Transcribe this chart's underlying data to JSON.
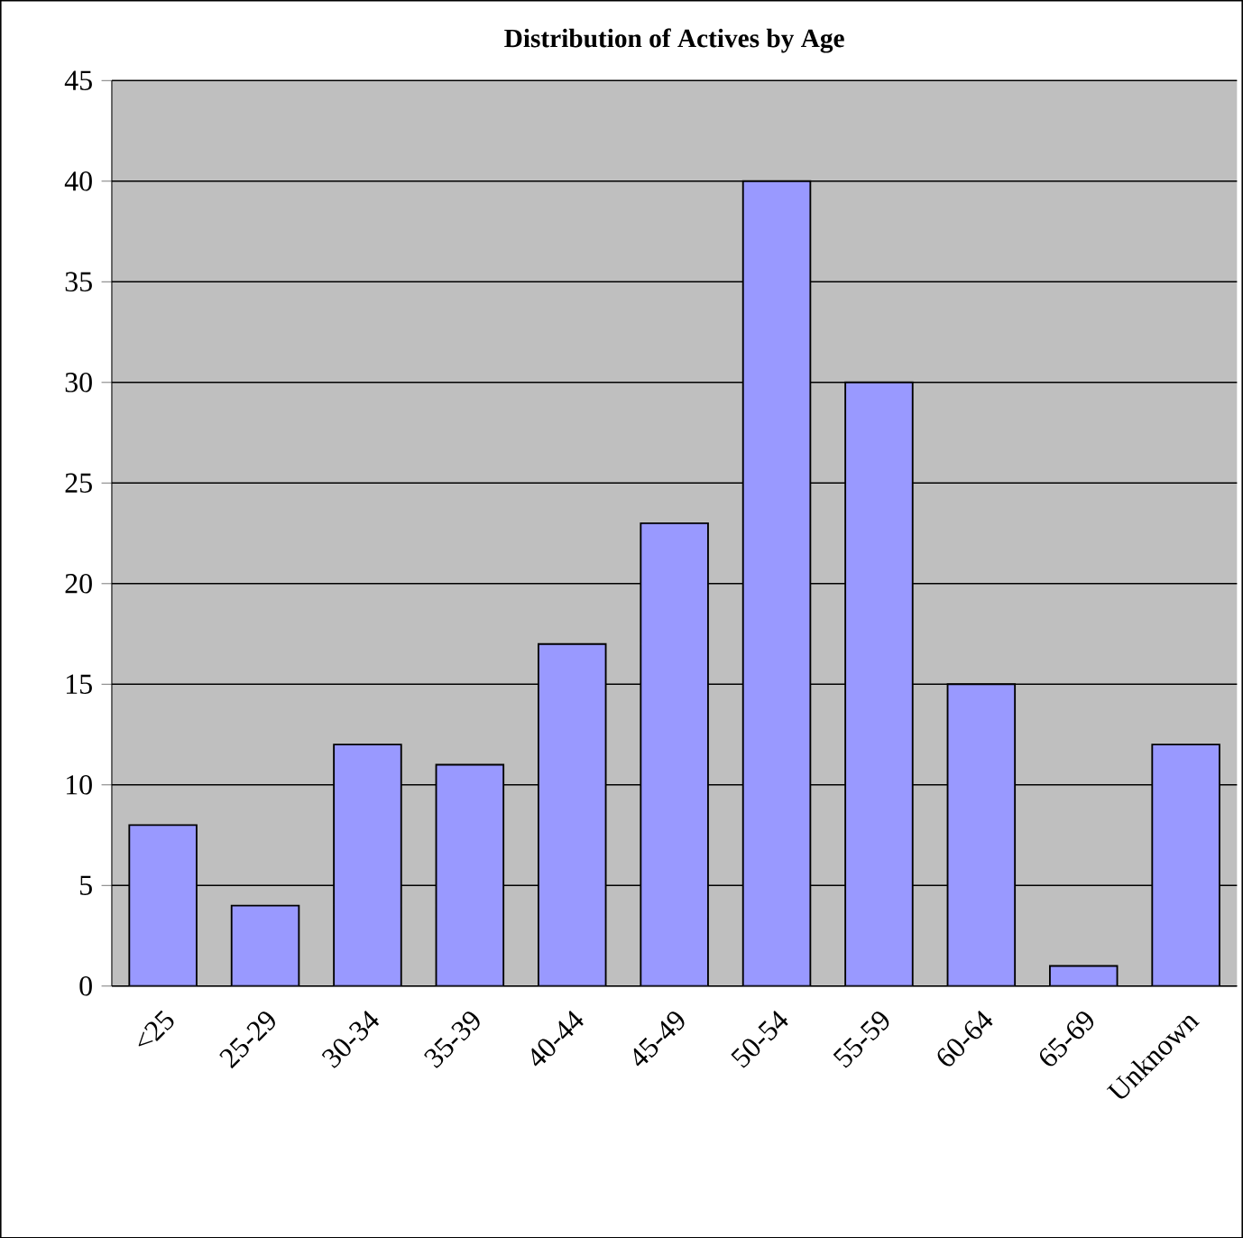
{
  "chart_data": {
    "type": "bar",
    "title": "Distribution of Actives by Age",
    "categories": [
      "<25",
      "25-29",
      "30-34",
      "35-39",
      "40-44",
      "45-49",
      "50-54",
      "55-59",
      "60-64",
      "65-69",
      "Unknown"
    ],
    "values": [
      8,
      4,
      12,
      11,
      17,
      23,
      40,
      30,
      15,
      1,
      12
    ],
    "color": "#9999ff",
    "ylim": [
      0,
      45
    ],
    "yticks": [
      0,
      5,
      10,
      15,
      20,
      25,
      30,
      35,
      40,
      45
    ],
    "grid": "y"
  }
}
